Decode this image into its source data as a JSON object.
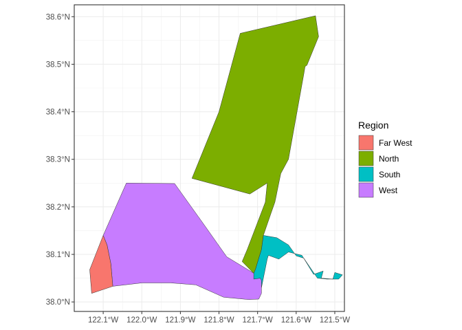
{
  "chart_data": {
    "type": "map",
    "title": "",
    "xlabel": "",
    "ylabel": "",
    "x_ticks": [
      {
        "value": -122.1,
        "label": "122.1°W"
      },
      {
        "value": -122.0,
        "label": "122.0°W"
      },
      {
        "value": -121.9,
        "label": "121.9°W"
      },
      {
        "value": -121.8,
        "label": "121.8°W"
      },
      {
        "value": -121.7,
        "label": "121.7°W"
      },
      {
        "value": -121.6,
        "label": "121.6°W"
      },
      {
        "value": -121.5,
        "label": "121.5°W"
      }
    ],
    "y_ticks": [
      {
        "value": 38.0,
        "label": "38.0°N"
      },
      {
        "value": 38.1,
        "label": "38.1°N"
      },
      {
        "value": 38.2,
        "label": "38.2°N"
      },
      {
        "value": 38.3,
        "label": "38.3°N"
      },
      {
        "value": 38.4,
        "label": "38.4°N"
      },
      {
        "value": 38.5,
        "label": "38.5°N"
      },
      {
        "value": 38.6,
        "label": "38.6°N"
      }
    ],
    "xlim": [
      -122.175,
      -121.475
    ],
    "ylim": [
      37.98,
      38.625
    ],
    "grid": true,
    "legend": {
      "title": "Region",
      "position": "right",
      "items": [
        {
          "label": "Far West",
          "color": "#F8766D"
        },
        {
          "label": "North",
          "color": "#7CAE00"
        },
        {
          "label": "South",
          "color": "#00BFC4"
        },
        {
          "label": "West",
          "color": "#C77CFF"
        }
      ]
    },
    "regions": [
      {
        "name": "West",
        "color": "#C77CFF",
        "coords": [
          [
            -122.04,
            38.25
          ],
          [
            -121.915,
            38.249
          ],
          [
            -121.84,
            38.164
          ],
          [
            -121.78,
            38.095
          ],
          [
            -121.697,
            38.054
          ],
          [
            -121.69,
            38.047
          ],
          [
            -121.69,
            38.018
          ],
          [
            -121.697,
            38.006
          ],
          [
            -121.723,
            38.005
          ],
          [
            -121.788,
            38.01
          ],
          [
            -121.86,
            38.036
          ],
          [
            -121.925,
            38.04
          ],
          [
            -122.0,
            38.04
          ],
          [
            -122.075,
            38.033
          ],
          [
            -122.08,
            38.08
          ],
          [
            -122.09,
            38.12
          ],
          [
            -122.1,
            38.14
          ]
        ]
      },
      {
        "name": "Far West",
        "color": "#F8766D",
        "coords": [
          [
            -122.1,
            38.14
          ],
          [
            -122.09,
            38.12
          ],
          [
            -122.08,
            38.08
          ],
          [
            -122.075,
            38.033
          ],
          [
            -122.13,
            38.018
          ],
          [
            -122.135,
            38.068
          ]
        ]
      },
      {
        "name": "North",
        "color": "#7CAE00",
        "coords": [
          [
            -121.87,
            38.26
          ],
          [
            -121.8,
            38.4
          ],
          [
            -121.745,
            38.565
          ],
          [
            -121.55,
            38.602
          ],
          [
            -121.542,
            38.558
          ],
          [
            -121.572,
            38.498
          ],
          [
            -121.577,
            38.495
          ],
          [
            -121.58,
            38.48
          ],
          [
            -121.62,
            38.3
          ],
          [
            -121.64,
            38.27
          ],
          [
            -121.655,
            38.21
          ],
          [
            -121.665,
            38.187
          ],
          [
            -121.685,
            38.14
          ],
          [
            -121.69,
            38.11
          ],
          [
            -121.697,
            38.092
          ],
          [
            -121.705,
            38.07
          ],
          [
            -121.71,
            38.06
          ],
          [
            -121.74,
            38.085
          ],
          [
            -121.727,
            38.11
          ],
          [
            -121.68,
            38.21
          ],
          [
            -121.675,
            38.25
          ],
          [
            -121.72,
            38.227
          ]
        ]
      },
      {
        "name": "South",
        "color": "#00BFC4",
        "coords": [
          [
            -121.685,
            38.14
          ],
          [
            -121.69,
            38.11
          ],
          [
            -121.697,
            38.092
          ],
          [
            -121.705,
            38.07
          ],
          [
            -121.71,
            38.06
          ],
          [
            -121.71,
            38.048
          ],
          [
            -121.693,
            38.05
          ],
          [
            -121.69,
            38.045
          ],
          [
            -121.69,
            38.03
          ],
          [
            -121.675,
            38.09
          ],
          [
            -121.672,
            38.098
          ],
          [
            -121.645,
            38.09
          ],
          [
            -121.62,
            38.105
          ],
          [
            -121.585,
            38.098
          ],
          [
            -121.555,
            38.058
          ],
          [
            -121.53,
            38.065
          ],
          [
            -121.535,
            38.05
          ],
          [
            -121.505,
            38.048
          ],
          [
            -121.5,
            38.062
          ],
          [
            -121.48,
            38.057
          ],
          [
            -121.49,
            38.048
          ],
          [
            -121.52,
            38.048
          ],
          [
            -121.545,
            38.05
          ],
          [
            -121.58,
            38.092
          ],
          [
            -121.6,
            38.097
          ],
          [
            -121.62,
            38.12
          ],
          [
            -121.65,
            38.135
          ]
        ]
      }
    ]
  }
}
